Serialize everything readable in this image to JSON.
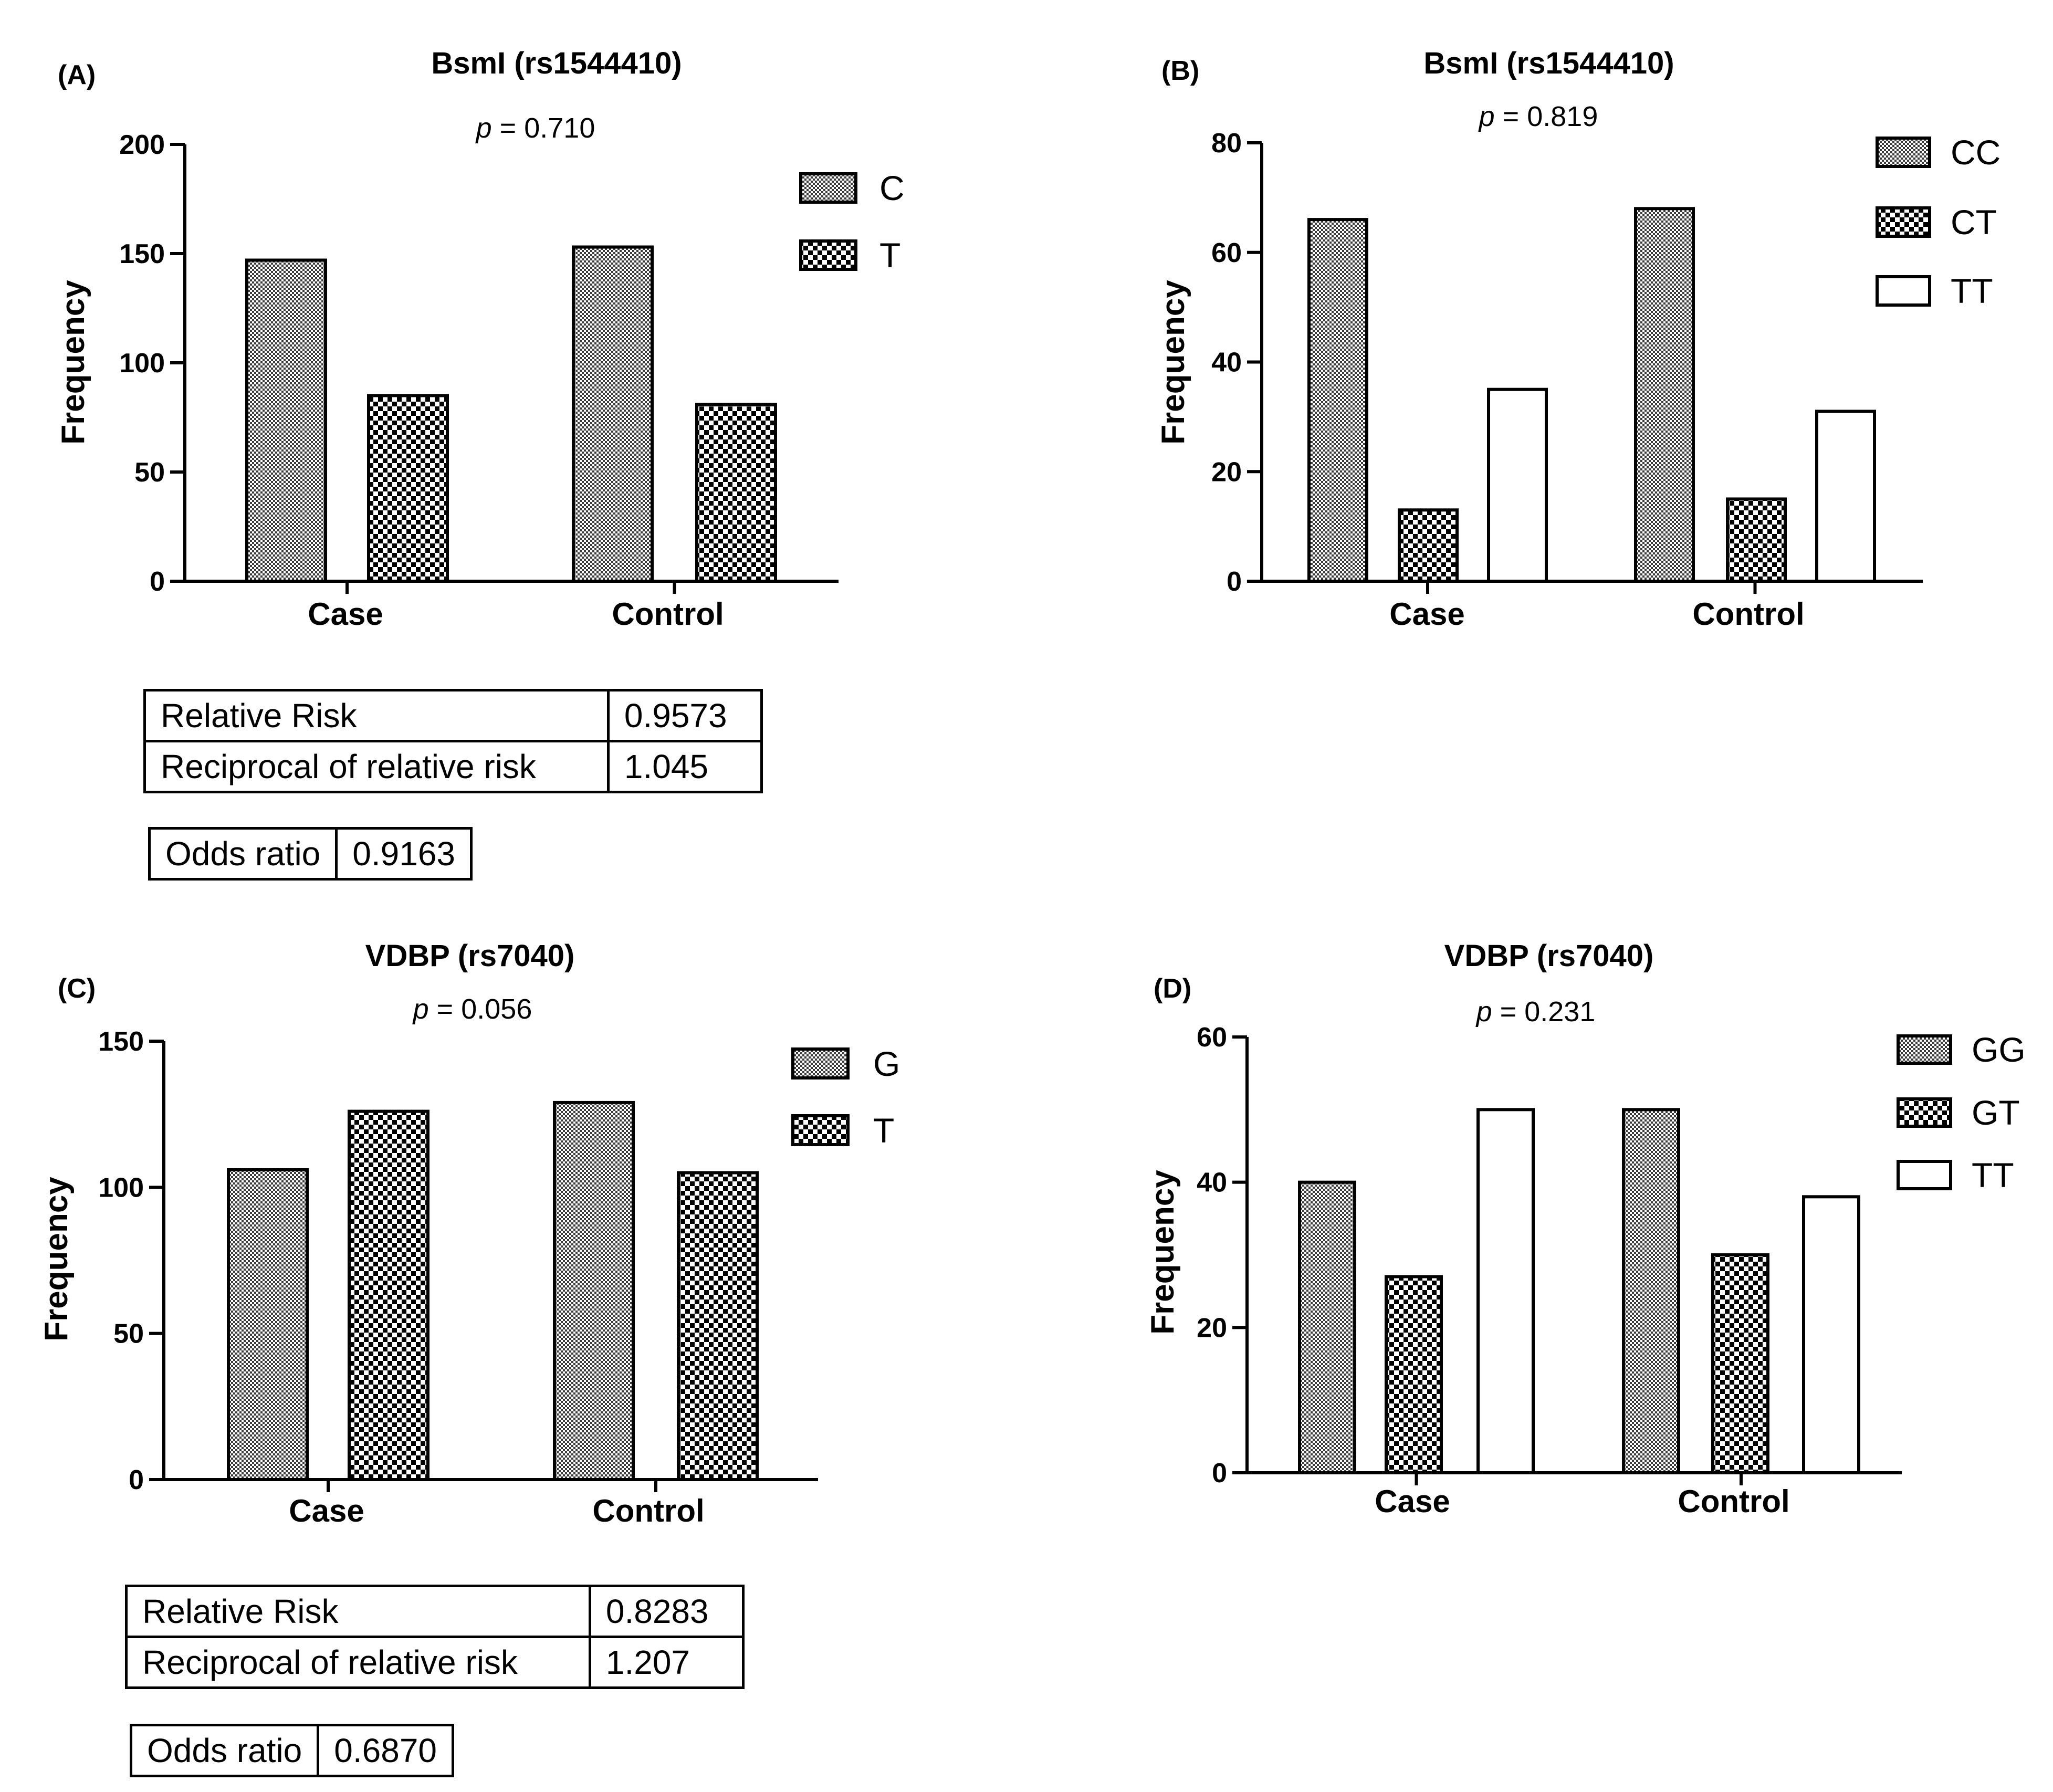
{
  "panels": [
    {
      "label": "(A)",
      "title": "BsmI (rs1544410)",
      "p_value": "0.710"
    },
    {
      "label": "(B)",
      "title": "BsmI (rs1544410)",
      "p_value": "0.819"
    },
    {
      "label": "(C)",
      "title": "VDBP (rs7040)",
      "p_value": "0.056"
    },
    {
      "label": "(D)",
      "title": "VDBP (rs7040)",
      "p_value": "0.231"
    }
  ],
  "p_symbol": "p",
  "tables": {
    "A": {
      "relative_risk_label": "Relative Risk",
      "relative_risk": "0.9573",
      "reciprocal_label": "Reciprocal of relative risk",
      "reciprocal": "1.045",
      "odds_ratio_label": "Odds ratio",
      "odds_ratio": "0.9163"
    },
    "C": {
      "relative_risk_label": "Relative Risk",
      "relative_risk": "0.8283",
      "reciprocal_label": "Reciprocal of relative risk",
      "reciprocal": "1.207",
      "odds_ratio_label": "Odds ratio",
      "odds_ratio": "0.6870"
    }
  },
  "chart_data": [
    {
      "type": "bar",
      "panel": "(A)",
      "title": "BsmI (rs1544410)",
      "xlabel": "",
      "ylabel": "Frequency",
      "categories": [
        "Case",
        "Control"
      ],
      "ylim": [
        0,
        200
      ],
      "yticks": [
        0,
        50,
        100,
        150,
        200
      ],
      "series": [
        {
          "name": "C",
          "values": [
            147,
            153
          ],
          "pattern": "fine"
        },
        {
          "name": "T",
          "values": [
            85,
            81
          ],
          "pattern": "check"
        }
      ]
    },
    {
      "type": "bar",
      "panel": "(B)",
      "title": "BsmI (rs1544410)",
      "xlabel": "",
      "ylabel": "Frequency",
      "categories": [
        "Case",
        "Control"
      ],
      "ylim": [
        0,
        80
      ],
      "yticks": [
        0,
        20,
        40,
        60,
        80
      ],
      "series": [
        {
          "name": "CC",
          "values": [
            66,
            68
          ],
          "pattern": "fine"
        },
        {
          "name": "CT",
          "values": [
            13,
            15
          ],
          "pattern": "check"
        },
        {
          "name": "TT",
          "values": [
            35,
            31
          ],
          "pattern": "none"
        }
      ]
    },
    {
      "type": "bar",
      "panel": "(C)",
      "title": "VDBP (rs7040)",
      "xlabel": "",
      "ylabel": "Frequency",
      "categories": [
        "Case",
        "Control"
      ],
      "ylim": [
        0,
        150
      ],
      "yticks": [
        0,
        50,
        100,
        150
      ],
      "series": [
        {
          "name": "G",
          "values": [
            106,
            129
          ],
          "pattern": "fine"
        },
        {
          "name": "T",
          "values": [
            126,
            105
          ],
          "pattern": "check"
        }
      ]
    },
    {
      "type": "bar",
      "panel": "(D)",
      "title": "VDBP (rs7040)",
      "xlabel": "",
      "ylabel": "Frequency",
      "categories": [
        "Case",
        "Control"
      ],
      "ylim": [
        0,
        60
      ],
      "yticks": [
        0,
        20,
        40,
        60
      ],
      "series": [
        {
          "name": "GG",
          "values": [
            40,
            50
          ],
          "pattern": "fine"
        },
        {
          "name": "GT",
          "values": [
            27,
            30
          ],
          "pattern": "check"
        },
        {
          "name": "TT",
          "values": [
            50,
            38
          ],
          "pattern": "none"
        }
      ]
    }
  ]
}
